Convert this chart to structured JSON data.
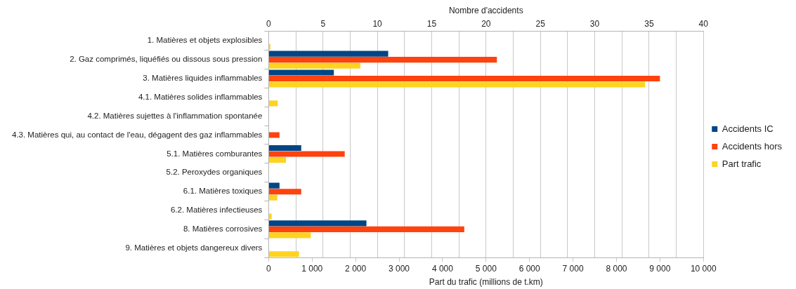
{
  "chart_data": {
    "type": "bar",
    "orientation": "horizontal",
    "categories": [
      "1. Matières et objets explosibles",
      "2. Gaz comprimés, liquéfiés ou dissous sous pression",
      "3. Matières liquides inflammables",
      "4.1. Matières solides inflammables",
      "4.2. Matières sujettes à l'inflammation spontanée",
      "4.3. Matières qui, au contact de l'eau, dégagent des gaz inflammables",
      "5.1. Matières comburantes",
      "5.2. Peroxydes organiques",
      "6.1. Matières toxiques",
      "6.2. Matières infectieuses",
      "8. Matières corrosives",
      "9. Matières et objets dangereux divers"
    ],
    "series": [
      {
        "name": "Accidents IC",
        "color": "#004586",
        "axis": "x2",
        "values": [
          0,
          11,
          6,
          0,
          0,
          0,
          3,
          0,
          1,
          0,
          9,
          0
        ]
      },
      {
        "name": "Accidents hors",
        "color": "#ff420e",
        "axis": "x2",
        "values": [
          0,
          21,
          36,
          0,
          0,
          1,
          7,
          0,
          3,
          0,
          18,
          0
        ]
      },
      {
        "name": "Part trafic",
        "color": "#ffd320",
        "values": [
          40,
          2110,
          8660,
          210,
          0,
          0,
          400,
          0,
          200,
          70,
          970,
          700
        ]
      }
    ],
    "xlabel": "Part du trafic (millions de t.km)",
    "x2label": "Nombre d'accidents",
    "xlim": [
      0,
      10000
    ],
    "xticks": [
      0,
      {
        "value": 1000,
        "label": "1 000"
      },
      {
        "value": 2000,
        "label": "2 000"
      },
      {
        "value": 3000,
        "label": "3 000"
      },
      {
        "value": 4000,
        "label": "4 000"
      },
      {
        "value": 5000,
        "label": "5 000"
      },
      {
        "value": 6000,
        "label": "6 000"
      },
      {
        "value": 7000,
        "label": "7 000"
      },
      {
        "value": 8000,
        "label": "8 000"
      },
      {
        "value": 9000,
        "label": "9 000"
      },
      {
        "value": 10000,
        "label": "10 000"
      }
    ],
    "x2lim": [
      0,
      40
    ],
    "x2ticks": [
      0,
      {
        "value": 2.5,
        "label": null
      },
      5,
      {
        "value": 7.5,
        "label": null
      },
      10,
      {
        "value": 12.5,
        "label": null
      },
      15,
      {
        "value": 17.5,
        "label": null
      },
      20,
      {
        "value": 22.5,
        "label": null
      },
      25,
      {
        "value": 27.5,
        "label": null
      },
      30,
      {
        "value": 32.5,
        "label": null
      },
      35,
      {
        "value": 37.5,
        "label": null
      },
      40
    ],
    "grid": "x2",
    "legend": "right"
  }
}
